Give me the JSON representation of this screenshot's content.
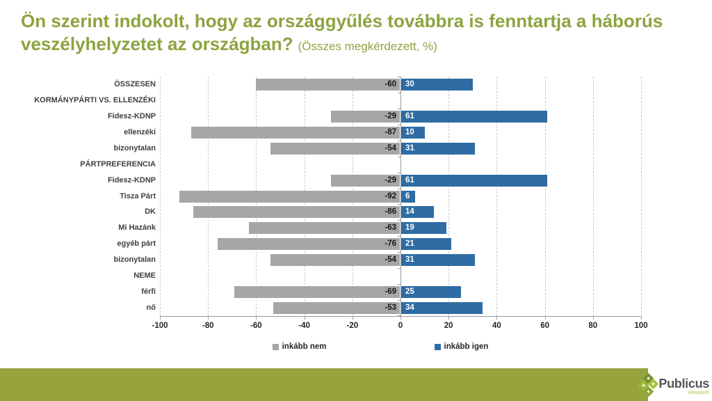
{
  "title": {
    "line1": "Ön szerint indokolt, hogy az országgyűlés továbbra is fenntartja a háborús",
    "line2": "veszélyhelyzetet az országban?",
    "subtitle": "(Összes megkérdezett, %)"
  },
  "chart_data": {
    "type": "bar",
    "orientation": "horizontal_diverging",
    "title": "Ön szerint indokolt, hogy az országgyűlés továbbra is fenntartja a háborús veszélyhelyzetet az országban?",
    "subtitle": "(Összes megkérdezett, %)",
    "categories": [
      "ÖSSZESEN",
      "KORMÁNYPÁRTI VS. ELLENZÉKI",
      "Fidesz-KDNP",
      "ellenzéki",
      "bizonytalan",
      "PÁRTPREFERENCIA",
      "Fidesz-KDNP",
      "Tisza Párt",
      "DK",
      "Mi Hazánk",
      "egyéb párt",
      "bizonytalan",
      "NEME",
      "férfi",
      "nő"
    ],
    "section_header_rows": [
      1,
      5,
      12
    ],
    "series": [
      {
        "name": "inkább nem",
        "color": "#a6a6a6",
        "values": [
          -60,
          null,
          -29,
          -87,
          -54,
          null,
          -29,
          -92,
          -86,
          -63,
          -76,
          -54,
          null,
          -69,
          -53
        ]
      },
      {
        "name": "inkább igen",
        "color": "#2e6ca3",
        "values": [
          30,
          null,
          61,
          10,
          31,
          null,
          61,
          6,
          14,
          19,
          21,
          31,
          null,
          25,
          34
        ]
      }
    ],
    "xlim": [
      -100,
      100
    ],
    "xticks": [
      -100,
      -80,
      -60,
      -40,
      -20,
      0,
      20,
      40,
      60,
      80,
      100
    ],
    "grid": "dashed vertical gridlines at every 20, solid zero axis",
    "legend_position": "bottom"
  },
  "footer": {
    "brand": "Publicus",
    "brand_sub": "Research"
  },
  "colors": {
    "title_green": "#8da33f",
    "accent_green": "#97a33c",
    "bar_gray": "#a6a6a6",
    "bar_blue": "#2e6ca3",
    "logo_gray": "#54565c",
    "logo_green": "#a9c243"
  }
}
